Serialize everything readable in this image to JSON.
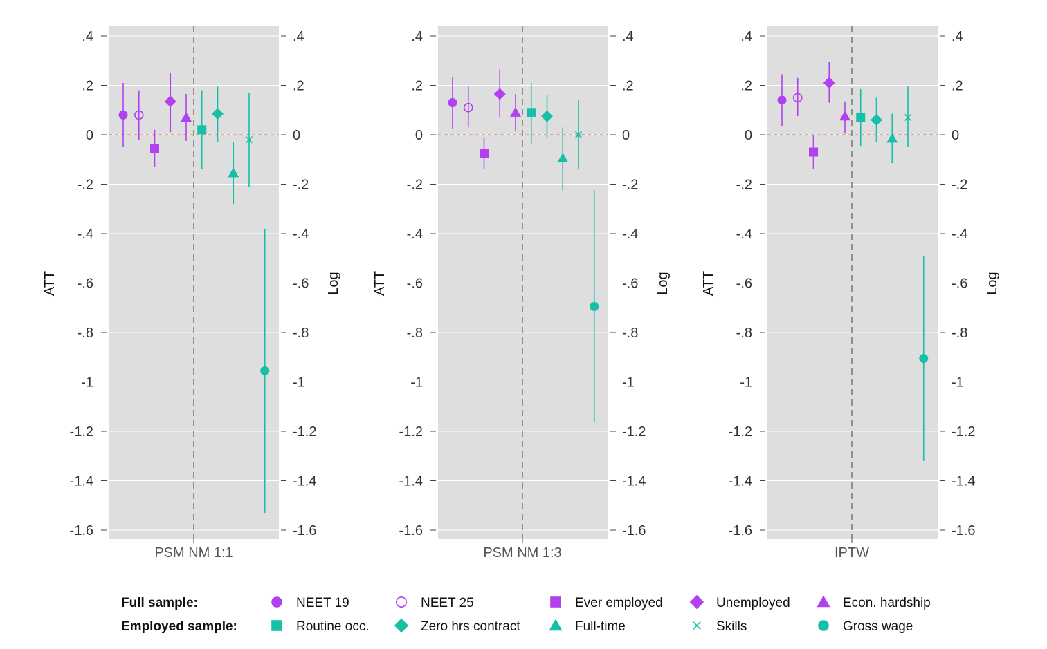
{
  "colors": {
    "purple": "#b040f0",
    "teal": "#15bfa8",
    "panel_bg": "#dedede",
    "zero_line": "#e0897a",
    "grid": "#ffffff",
    "divider": "#777777"
  },
  "chart_data": {
    "type": "scatter",
    "subtype": "coefficient plot with 95% confidence intervals",
    "ylim": [
      -1.6,
      0.4
    ],
    "yticks": [
      {
        "value": 0.4,
        "label": ".4"
      },
      {
        "value": 0.2,
        "label": ".2"
      },
      {
        "value": 0,
        "label": "0"
      },
      {
        "value": -0.2,
        "label": "-.2"
      },
      {
        "value": -0.4,
        "label": "-.4"
      },
      {
        "value": -0.6,
        "label": "-.6"
      },
      {
        "value": -0.8,
        "label": "-.8"
      },
      {
        "value": -1.0,
        "label": "-1"
      },
      {
        "value": -1.2,
        "label": "-1.2"
      },
      {
        "value": -1.4,
        "label": "-1.4"
      },
      {
        "value": -1.6,
        "label": "-1.6"
      }
    ],
    "ylabel_left": "ATT",
    "ylabel_right": "Log",
    "reference_line_y": 0,
    "outcomes": [
      {
        "key": "neet19",
        "label": "NEET 19",
        "sample": "full",
        "marker": "circle"
      },
      {
        "key": "neet25",
        "label": "NEET 25",
        "sample": "full",
        "marker": "circle-open"
      },
      {
        "key": "ever_employed",
        "label": "Ever employed",
        "sample": "full",
        "marker": "square"
      },
      {
        "key": "unemployed",
        "label": "Unemployed",
        "sample": "full",
        "marker": "diamond"
      },
      {
        "key": "econ_hardship",
        "label": "Econ. hardship",
        "sample": "full",
        "marker": "triangle"
      },
      {
        "key": "routine_occ",
        "label": "Routine occ.",
        "sample": "employed",
        "marker": "square"
      },
      {
        "key": "zero_hrs",
        "label": "Zero hrs contract",
        "sample": "employed",
        "marker": "diamond"
      },
      {
        "key": "full_time",
        "label": "Full-time",
        "sample": "employed",
        "marker": "triangle"
      },
      {
        "key": "skills",
        "label": "Skills",
        "sample": "employed",
        "marker": "x"
      },
      {
        "key": "gross_wage",
        "label": "Gross wage",
        "sample": "employed",
        "marker": "circle"
      }
    ],
    "panels": [
      {
        "label": "PSM NM 1:1",
        "estimates": [
          {
            "outcome": "neet19",
            "est": 0.08,
            "lo": -0.05,
            "hi": 0.21
          },
          {
            "outcome": "neet25",
            "est": 0.08,
            "lo": -0.02,
            "hi": 0.18
          },
          {
            "outcome": "ever_employed",
            "est": -0.055,
            "lo": -0.13,
            "hi": 0.02
          },
          {
            "outcome": "unemployed",
            "est": 0.135,
            "lo": 0.01,
            "hi": 0.25
          },
          {
            "outcome": "econ_hardship",
            "est": 0.07,
            "lo": -0.025,
            "hi": 0.165
          },
          {
            "outcome": "routine_occ",
            "est": 0.02,
            "lo": -0.14,
            "hi": 0.18
          },
          {
            "outcome": "zero_hrs",
            "est": 0.085,
            "lo": -0.03,
            "hi": 0.195
          },
          {
            "outcome": "full_time",
            "est": -0.155,
            "lo": -0.28,
            "hi": -0.03
          },
          {
            "outcome": "skills",
            "est": -0.02,
            "lo": -0.21,
            "hi": 0.17
          },
          {
            "outcome": "gross_wage",
            "est": -0.955,
            "lo": -1.53,
            "hi": -0.38
          }
        ]
      },
      {
        "label": "PSM NM 1:3",
        "estimates": [
          {
            "outcome": "neet19",
            "est": 0.13,
            "lo": 0.025,
            "hi": 0.235
          },
          {
            "outcome": "neet25",
            "est": 0.11,
            "lo": 0.03,
            "hi": 0.195
          },
          {
            "outcome": "ever_employed",
            "est": -0.075,
            "lo": -0.14,
            "hi": -0.01
          },
          {
            "outcome": "unemployed",
            "est": 0.165,
            "lo": 0.07,
            "hi": 0.265
          },
          {
            "outcome": "econ_hardship",
            "est": 0.09,
            "lo": 0.015,
            "hi": 0.165
          },
          {
            "outcome": "routine_occ",
            "est": 0.09,
            "lo": -0.035,
            "hi": 0.21
          },
          {
            "outcome": "zero_hrs",
            "est": 0.075,
            "lo": -0.01,
            "hi": 0.16
          },
          {
            "outcome": "full_time",
            "est": -0.095,
            "lo": -0.225,
            "hi": 0.03
          },
          {
            "outcome": "skills",
            "est": 0,
            "lo": -0.14,
            "hi": 0.14
          },
          {
            "outcome": "gross_wage",
            "est": -0.695,
            "lo": -1.165,
            "hi": -0.225
          }
        ]
      },
      {
        "label": "IPTW",
        "estimates": [
          {
            "outcome": "neet19",
            "est": 0.14,
            "lo": 0.035,
            "hi": 0.245
          },
          {
            "outcome": "neet25",
            "est": 0.15,
            "lo": 0.075,
            "hi": 0.23
          },
          {
            "outcome": "ever_employed",
            "est": -0.07,
            "lo": -0.14,
            "hi": 0
          },
          {
            "outcome": "unemployed",
            "est": 0.21,
            "lo": 0.13,
            "hi": 0.295
          },
          {
            "outcome": "econ_hardship",
            "est": 0.075,
            "lo": 0.005,
            "hi": 0.135
          },
          {
            "outcome": "routine_occ",
            "est": 0.07,
            "lo": -0.045,
            "hi": 0.185
          },
          {
            "outcome": "zero_hrs",
            "est": 0.06,
            "lo": -0.03,
            "hi": 0.15
          },
          {
            "outcome": "full_time",
            "est": -0.015,
            "lo": -0.115,
            "hi": 0.085
          },
          {
            "outcome": "skills",
            "est": 0.07,
            "lo": -0.05,
            "hi": 0.195
          },
          {
            "outcome": "gross_wage",
            "est": -0.905,
            "lo": -1.32,
            "hi": -0.49
          }
        ]
      }
    ],
    "legend": {
      "placement": "bottom",
      "full_sample_heading": "Full sample:",
      "employed_sample_heading": "Employed sample:",
      "full_sample": [
        "neet19",
        "neet25",
        "ever_employed",
        "unemployed",
        "econ_hardship"
      ],
      "employed_sample": [
        "routine_occ",
        "zero_hrs",
        "full_time",
        "skills",
        "gross_wage"
      ]
    }
  }
}
